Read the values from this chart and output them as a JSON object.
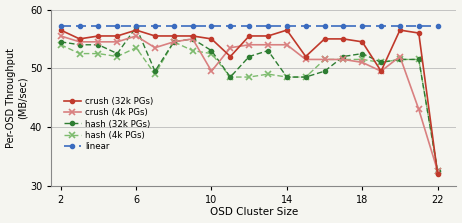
{
  "x": [
    2,
    3,
    4,
    5,
    6,
    7,
    8,
    9,
    10,
    11,
    12,
    13,
    14,
    15,
    16,
    17,
    18,
    19,
    20,
    21,
    22
  ],
  "crush_32k": [
    56.5,
    55.0,
    55.5,
    55.5,
    56.5,
    55.5,
    55.5,
    55.5,
    55.0,
    52.0,
    55.5,
    55.5,
    56.5,
    52.0,
    55.0,
    55.0,
    54.5,
    49.5,
    56.5,
    56.0,
    32.0
  ],
  "crush_4k": [
    55.5,
    54.5,
    54.5,
    54.5,
    55.5,
    53.5,
    54.5,
    55.0,
    49.5,
    53.5,
    54.0,
    54.0,
    54.0,
    51.5,
    51.5,
    51.5,
    51.0,
    49.5,
    52.0,
    43.0,
    32.5
  ],
  "hash_32k": [
    54.5,
    54.0,
    54.0,
    52.5,
    57.0,
    49.5,
    54.5,
    55.0,
    53.0,
    48.5,
    52.0,
    53.0,
    48.5,
    48.5,
    49.5,
    52.0,
    52.5,
    51.0,
    51.5,
    51.5,
    32.5
  ],
  "hash_4k": [
    54.0,
    52.5,
    52.5,
    52.0,
    53.5,
    49.0,
    54.5,
    53.0,
    52.5,
    48.5,
    48.5,
    49.0,
    48.5,
    48.5,
    51.5,
    51.5,
    51.5,
    51.0,
    51.5,
    51.5,
    32.5
  ],
  "linear": [
    57.2,
    57.2,
    57.2,
    57.2,
    57.2,
    57.2,
    57.2,
    57.2,
    57.2,
    57.2,
    57.2,
    57.2,
    57.2,
    57.2,
    57.2,
    57.2,
    57.2,
    57.2,
    57.2,
    57.2,
    57.2
  ],
  "ylim": [
    30,
    60
  ],
  "yticks": [
    30,
    40,
    50,
    60
  ],
  "xticks": [
    2,
    6,
    10,
    14,
    18,
    22
  ],
  "xlabel": "OSD Cluster Size",
  "ylabel": "Per-OSD Throughput\n(MB/sec)",
  "legend_labels": [
    "crush (32k PGs)",
    "crush (4k PGs)",
    "hash (32k PGs)",
    "hash (4k PGs)",
    "linear"
  ],
  "color_crush_32k": "#c0392b",
  "color_crush_4k": "#d98080",
  "color_hash_32k": "#2e7d32",
  "color_hash_4k": "#7dbb6e",
  "color_linear": "#3a6bbf",
  "bg_color": "#f5f5f0"
}
